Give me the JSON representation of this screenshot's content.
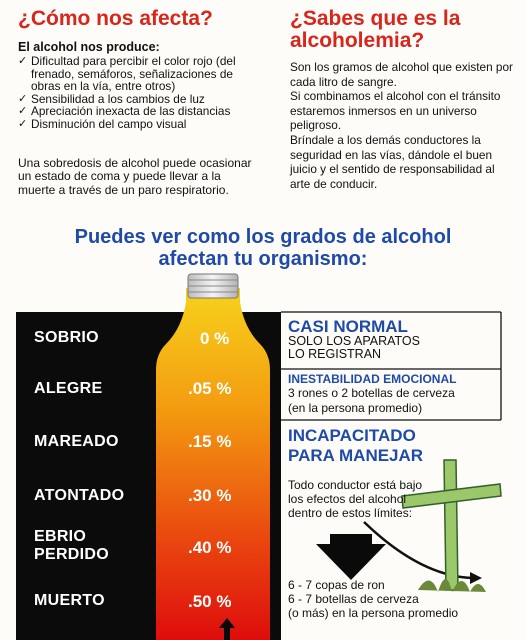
{
  "left": {
    "title": "¿Cómo nos afecta?",
    "subtitle": "El alcohol nos produce:",
    "bullets": [
      "Dificultad para percibir el color rojo (del frenado, semáforos, señalizaciones de obras en la vía, entre otros)",
      "Sensibilidad a los cambios de luz",
      "Apreciación inexacta de las distancias",
      "Disminución del campo visual"
    ],
    "paragraph": "Una sobredosis de alcohol puede ocasionar un estado de coma y puede llevar a la muerte a través de un paro respiratorio."
  },
  "right": {
    "title_line1": "¿Sabes que es la",
    "title_line2": "alcoholemia?",
    "p1": "Son los gramos de alcohol que existen por cada litro de sangre.",
    "p2": "Si combinamos el alcohol con el tránsito estaremos inmersos en un universo peligroso.",
    "p3": "Bríndale a los demás conductores la seguridad en las vías, dándole el buen juicio y el sentido de responsabilidad al arte de conducir."
  },
  "middle_title_line1": "Puedes ver como los grados de alcohol",
  "middle_title_line2": "afectan tu organismo:",
  "levels": [
    {
      "name": "SOBRIO",
      "pct": "0 %"
    },
    {
      "name": "ALEGRE",
      "pct": ".05 %"
    },
    {
      "name": "MAREADO",
      "pct": ".15 %"
    },
    {
      "name": "ATONTADO",
      "pct": ".30 %"
    },
    {
      "name_line1": "EBRIO",
      "name_line2": "PERDIDO",
      "pct": ".40 %"
    },
    {
      "name": "MUERTO",
      "pct": ".50 %"
    }
  ],
  "effects": {
    "normal_title": "CASI NORMAL",
    "normal_sub1": "SOLO LOS APARATOS",
    "normal_sub2": "LO REGISTRAN",
    "inest_title": "INESTABILIDAD EMOCIONAL",
    "inest_sub1": "3 rones o 2 botellas de cerveza",
    "inest_sub2": "(en la persona promedio)",
    "incap_line1": "INCAPACITADO",
    "incap_line2": "PARA MANEJAR",
    "conductor_line1": "Todo conductor está bajo",
    "conductor_line2": "los efectos del alcohol",
    "conductor_line3": "dentro de estos límites:",
    "dose_line1": "6 - 7 copas de ron",
    "dose_line2": "6 - 7 botellas de cerveza",
    "dose_line3": "(o más) en la persona promedio"
  },
  "colors": {
    "heading_red": "#d9261c",
    "heading_blue": "#1f4aa8",
    "bottle_top": "#f4c21a",
    "bottle_bottom": "#e0100e",
    "panel_black": "#0b0b0b"
  }
}
